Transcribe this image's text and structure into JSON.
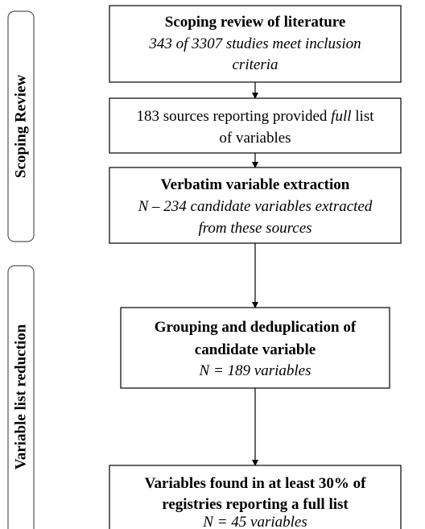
{
  "sidebar": [
    {
      "label": "Scoping Review"
    },
    {
      "label": "Variable list reduction"
    }
  ],
  "boxes": [
    {
      "title": "Scoping review of literature",
      "lines": [
        "343 of 3307 studies meet inclusion",
        "criteria"
      ]
    },
    {
      "line1": {
        "before": "183 sources reporting provided ",
        "emphasis": "full",
        "after": " list"
      },
      "line2": "of variables"
    },
    {
      "title": "Verbatim variable extraction",
      "lines": [
        "N – 234 candidate variables extracted",
        "from these sources"
      ]
    },
    {
      "title_lines": [
        "Grouping and deduplication of",
        "candidate variable"
      ],
      "lines": [
        "N = 189 variables"
      ]
    },
    {
      "title_lines": [
        "Variables found in at least 30% of",
        "registries reporting a full list"
      ],
      "lines": [
        "N = 45 variables"
      ]
    }
  ]
}
